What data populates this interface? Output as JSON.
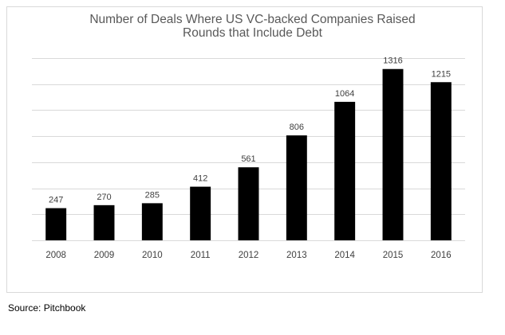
{
  "chart_data": {
    "type": "bar",
    "title_line1": "Number of Deals Where US VC-backed Companies Raised",
    "title_line2": "Rounds that Include Debt",
    "categories": [
      "2008",
      "2009",
      "2010",
      "2011",
      "2012",
      "2013",
      "2014",
      "2015",
      "2016"
    ],
    "values": [
      247,
      270,
      285,
      412,
      561,
      806,
      1064,
      1316,
      1215
    ],
    "ylim": [
      0,
      1400
    ],
    "ytick_step": 200,
    "grid": true,
    "legend": "none",
    "bar_color": "#000000",
    "grid_color": "#d9d9d9"
  },
  "source": "Source: Pitchbook"
}
